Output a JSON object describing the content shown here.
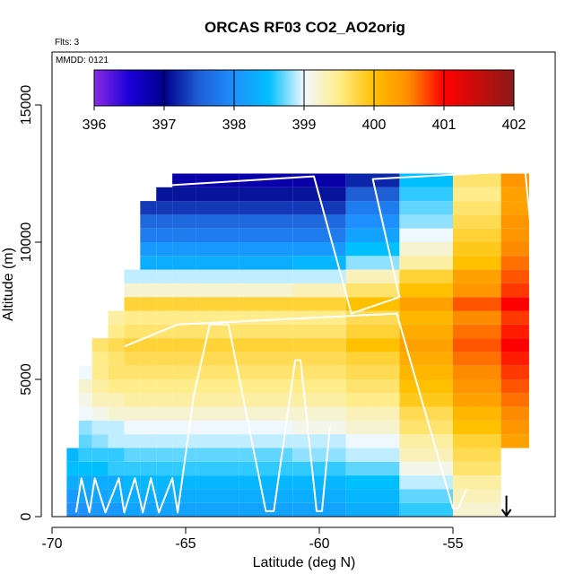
{
  "chart_data": {
    "type": "heatmap",
    "title": "ORCAS RF03 CO2_AO2orig",
    "flights_label": "Flts: 3",
    "date_label": "MMDD: 0121",
    "xlabel": "Latitude (deg N)",
    "ylabel": "Altitude (m)",
    "xlim": [
      -70,
      -51
    ],
    "ylim": [
      0,
      17000
    ],
    "x_ticks": [
      -70,
      -65,
      -60,
      -55
    ],
    "x_tick_labels": [
      "-70",
      "-65",
      "-60",
      "-55"
    ],
    "y_ticks": [
      0,
      5000,
      10000,
      15000
    ],
    "y_tick_labels": [
      "0",
      "5000",
      "10000",
      "15000"
    ],
    "colorbar": {
      "min": 396,
      "max": 402,
      "ticks": [
        396,
        397,
        398,
        399,
        400,
        401,
        402
      ],
      "tick_labels": [
        "396",
        "397",
        "398",
        "399",
        "400",
        "401",
        "402"
      ],
      "stops": [
        {
          "value": 396.0,
          "color": "#8a2be2"
        },
        {
          "value": 396.5,
          "color": "#1a00d8"
        },
        {
          "value": 397.0,
          "color": "#00008b"
        },
        {
          "value": 397.5,
          "color": "#1f5fd6"
        },
        {
          "value": 398.0,
          "color": "#1e90ff"
        },
        {
          "value": 398.5,
          "color": "#00bfff"
        },
        {
          "value": 399.0,
          "color": "#f0f8ff"
        },
        {
          "value": 399.5,
          "color": "#ffec8b"
        },
        {
          "value": 400.0,
          "color": "#ffc000"
        },
        {
          "value": 400.5,
          "color": "#ff8c00"
        },
        {
          "value": 401.0,
          "color": "#ff0000"
        },
        {
          "value": 402.0,
          "color": "#8b1a1a"
        }
      ]
    },
    "altitude_profile": [
      {
        "lat": -69.2,
        "co2": [
          398.0,
          398.1,
          398.3,
          398.5,
          398.4,
          null,
          null,
          null,
          null,
          null,
          null,
          null,
          null,
          null,
          null,
          null,
          null,
          null,
          null,
          null,
          null,
          null,
          null,
          null,
          null
        ]
      },
      {
        "lat": -68.8,
        "co2": [
          398.0,
          398.2,
          398.3,
          398.5,
          398.6,
          398.7,
          398.8,
          399.0,
          399.1,
          399.2,
          399.0,
          null,
          null,
          null,
          null,
          null,
          null,
          null,
          null,
          null,
          null,
          null,
          null,
          null,
          null
        ]
      },
      {
        "lat": -68.2,
        "co2": [
          398.1,
          398.2,
          398.3,
          398.5,
          398.6,
          398.8,
          398.9,
          399.1,
          399.3,
          399.4,
          399.5,
          399.5,
          399.6,
          null,
          null,
          null,
          null,
          null,
          null,
          null,
          null,
          null,
          null,
          null,
          null
        ]
      },
      {
        "lat": -67.6,
        "co2": [
          398.1,
          398.3,
          398.3,
          398.6,
          398.6,
          398.9,
          398.9,
          399.2,
          399.3,
          399.5,
          399.6,
          399.6,
          399.7,
          399.5,
          399.4,
          null,
          null,
          null,
          null,
          null,
          null,
          null,
          null,
          null,
          null
        ]
      },
      {
        "lat": -67.0,
        "co2": [
          398.2,
          398.3,
          398.4,
          398.6,
          398.7,
          398.9,
          399.0,
          399.2,
          399.4,
          399.5,
          399.6,
          399.7,
          399.8,
          399.6,
          399.5,
          399.8,
          399.2,
          398.9,
          null,
          null,
          null,
          null,
          null,
          null,
          null
        ]
      },
      {
        "lat": -66.4,
        "co2": [
          398.2,
          398.3,
          398.4,
          398.6,
          398.7,
          398.9,
          399.0,
          399.2,
          399.4,
          399.5,
          399.6,
          399.7,
          399.8,
          399.6,
          399.5,
          399.8,
          399.2,
          398.9,
          398.3,
          398.1,
          397.8,
          397.6,
          397.3,
          null,
          null
        ]
      },
      {
        "lat": -65.8,
        "co2": [
          398.2,
          398.3,
          398.4,
          398.6,
          398.7,
          398.9,
          399.0,
          399.2,
          399.4,
          399.5,
          399.6,
          399.7,
          399.8,
          399.6,
          399.5,
          399.8,
          399.2,
          398.9,
          398.3,
          398.1,
          397.8,
          397.6,
          397.3,
          397.1,
          null
        ]
      },
      {
        "lat": -65.2,
        "co2": [
          398.2,
          398.3,
          398.4,
          398.6,
          398.7,
          398.9,
          399.0,
          399.2,
          399.4,
          399.5,
          399.6,
          399.7,
          399.8,
          399.6,
          399.5,
          399.8,
          399.2,
          398.9,
          398.3,
          398.1,
          397.8,
          397.6,
          397.3,
          397.1,
          396.8
        ]
      },
      {
        "lat": -64.0,
        "co2": [
          398.2,
          398.3,
          398.4,
          398.6,
          398.7,
          398.9,
          399.0,
          399.2,
          399.4,
          399.5,
          399.6,
          399.7,
          399.8,
          399.6,
          399.5,
          399.8,
          399.2,
          398.9,
          398.3,
          398.1,
          397.8,
          397.6,
          397.3,
          397.1,
          396.8
        ]
      },
      {
        "lat": -62.0,
        "co2": [
          398.2,
          398.3,
          398.4,
          398.6,
          398.7,
          398.9,
          399.0,
          399.2,
          399.4,
          399.5,
          399.6,
          399.7,
          399.8,
          399.6,
          399.5,
          399.8,
          399.2,
          398.9,
          398.3,
          398.1,
          397.8,
          397.6,
          397.3,
          397.1,
          396.8
        ]
      },
      {
        "lat": -60.0,
        "co2": [
          398.2,
          398.3,
          398.4,
          398.6,
          398.8,
          398.9,
          399.1,
          399.2,
          399.4,
          399.5,
          399.6,
          399.7,
          399.8,
          399.6,
          399.5,
          399.8,
          399.3,
          398.9,
          398.4,
          398.1,
          397.8,
          397.6,
          397.3,
          397.1,
          396.8
        ]
      },
      {
        "lat": -58.0,
        "co2": [
          398.3,
          398.4,
          398.5,
          398.7,
          398.9,
          399.0,
          399.2,
          399.3,
          399.5,
          399.6,
          399.7,
          399.8,
          400.0,
          399.8,
          399.7,
          400.0,
          399.6,
          399.3,
          398.8,
          398.5,
          398.2,
          398.0,
          397.8,
          397.5,
          397.2
        ]
      },
      {
        "lat": -56.0,
        "co2": [
          398.6,
          398.7,
          398.9,
          399.1,
          399.3,
          399.4,
          399.6,
          399.7,
          399.9,
          400.0,
          400.1,
          400.2,
          400.3,
          400.2,
          400.1,
          400.3,
          400.0,
          399.8,
          399.4,
          399.2,
          399.0,
          398.8,
          398.7,
          398.6,
          398.5
        ]
      },
      {
        "lat": -54.0,
        "co2": [
          399.2,
          399.3,
          399.4,
          399.6,
          399.7,
          399.8,
          400.0,
          400.1,
          400.3,
          400.4,
          400.5,
          400.6,
          400.7,
          400.6,
          400.5,
          400.7,
          400.4,
          400.3,
          400.0,
          399.9,
          399.8,
          399.7,
          399.6,
          399.5,
          399.6
        ]
      },
      {
        "lat": -52.4,
        "co2": [
          null,
          null,
          null,
          null,
          null,
          400.3,
          400.4,
          400.5,
          400.6,
          400.7,
          400.8,
          400.9,
          401.0,
          400.9,
          400.8,
          401.0,
          400.8,
          400.7,
          400.6,
          400.5,
          400.4,
          400.4,
          400.3,
          400.3,
          400.4
        ]
      }
    ],
    "flight_track": [
      {
        "lat": -69.1,
        "alt": 150
      },
      {
        "lat": -68.9,
        "alt": 1400
      },
      {
        "lat": -68.6,
        "alt": 150
      },
      {
        "lat": -68.4,
        "alt": 1400
      },
      {
        "lat": -68.0,
        "alt": 150
      },
      {
        "lat": -67.5,
        "alt": 1400
      },
      {
        "lat": -67.3,
        "alt": 150
      },
      {
        "lat": -66.9,
        "alt": 1400
      },
      {
        "lat": -66.6,
        "alt": 150
      },
      {
        "lat": -66.3,
        "alt": 1400
      },
      {
        "lat": -66.0,
        "alt": 150
      },
      {
        "lat": -65.5,
        "alt": 1400
      },
      {
        "lat": -65.3,
        "alt": 150
      },
      {
        "lat": -64.7,
        "alt": 4400
      },
      {
        "lat": -64.1,
        "alt": 7000
      },
      {
        "lat": -63.4,
        "alt": 7000
      },
      {
        "lat": -62.0,
        "alt": 200
      },
      {
        "lat": -61.7,
        "alt": 200
      },
      {
        "lat": -60.9,
        "alt": 5700
      },
      {
        "lat": -60.7,
        "alt": 5700
      },
      {
        "lat": -60.1,
        "alt": 200
      },
      {
        "lat": -59.9,
        "alt": 200
      },
      {
        "lat": -59.6,
        "alt": 3300
      }
    ],
    "flight_track_2": [
      {
        "lat": -67.3,
        "alt": 6200
      },
      {
        "lat": -65.3,
        "alt": 7000
      },
      {
        "lat": -57.1,
        "alt": 7400
      },
      {
        "lat": -55.0,
        "alt": 300
      },
      {
        "lat": -54.8,
        "alt": 300
      },
      {
        "lat": -54.5,
        "alt": 1000
      }
    ],
    "flight_track_3": [
      {
        "lat": -67.8,
        "alt": 10000
      },
      {
        "lat": -66.8,
        "alt": 12000
      },
      {
        "lat": -60.2,
        "alt": 12400
      },
      {
        "lat": -58.8,
        "alt": 7400
      },
      {
        "lat": -57.0,
        "alt": 8000
      },
      {
        "lat": -58.0,
        "alt": 12300
      },
      {
        "lat": -52.3,
        "alt": 12600
      },
      {
        "lat": -51.8,
        "alt": 7600
      }
    ],
    "marker_arrow": {
      "lat": -53.0,
      "alt_top": 700,
      "alt_bottom": 0
    }
  }
}
